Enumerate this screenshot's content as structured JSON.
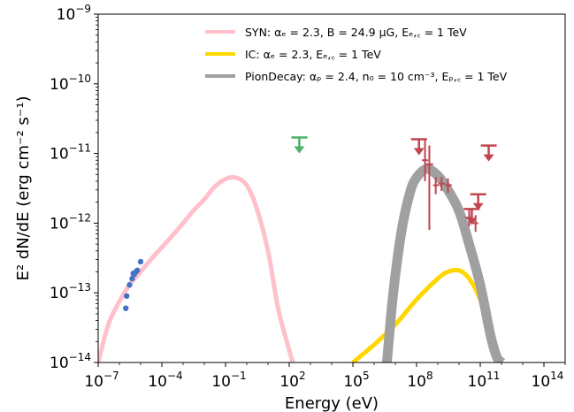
{
  "chart_data": {
    "type": "line",
    "xlabel": "Energy (eV)",
    "ylabel": "E² dN/dE (erg cm⁻² s⁻¹)",
    "x_scale": "log",
    "y_scale": "log",
    "xlim": [
      1e-07,
      1000000000000000.0
    ],
    "ylim": [
      1e-14,
      1e-09
    ],
    "x_ticks": [
      {
        "value": 1e-07,
        "base": "10",
        "exp": "−7"
      },
      {
        "value": 0.0001,
        "base": "10",
        "exp": "−4"
      },
      {
        "value": 0.1,
        "base": "10",
        "exp": "−1"
      },
      {
        "value": 100.0,
        "base": "10",
        "exp": "2"
      },
      {
        "value": 100000.0,
        "base": "10",
        "exp": "5"
      },
      {
        "value": 100000000.0,
        "base": "10",
        "exp": "8"
      },
      {
        "value": 100000000000.0,
        "base": "10",
        "exp": "11"
      },
      {
        "value": 100000000000000.0,
        "base": "10",
        "exp": "14"
      }
    ],
    "y_ticks": [
      {
        "value": 1e-14,
        "base": "10",
        "exp": "−14"
      },
      {
        "value": 1e-13,
        "base": "10",
        "exp": "−13"
      },
      {
        "value": 1e-12,
        "base": "10",
        "exp": "−12"
      },
      {
        "value": 1e-11,
        "base": "10",
        "exp": "−11"
      },
      {
        "value": 1e-10,
        "base": "10",
        "exp": "−10"
      },
      {
        "value": 1e-09,
        "base": "10",
        "exp": "−9"
      }
    ],
    "grid": false,
    "legend_position": "top-right",
    "legend": [
      {
        "series": "SYN",
        "text": "SYN: αₑ = 2.3, B = 24.9 μG, Eₑ,꜀ = 1 TeV"
      },
      {
        "series": "IC",
        "text": "IC: αₑ = 2.3, Eₑ,꜀ = 1 TeV"
      },
      {
        "series": "PionDecay",
        "text": "PionDecay: αₚ = 2.4, n₀ = 10 cm⁻³, Eₚ,꜀ = 1 TeV"
      }
    ],
    "series": [
      {
        "name": "SYN",
        "color": "#ffc0cb",
        "x": [
          1e-07,
          3e-07,
          1e-06,
          3e-06,
          1e-05,
          3e-05,
          0.0001,
          0.0003,
          0.001,
          0.003,
          0.01,
          0.03,
          0.1,
          0.3,
          1,
          3,
          10,
          30,
          100,
          150
        ],
        "y": [
          1e-14,
          3.5e-14,
          7.5e-14,
          1.3e-13,
          2e-13,
          3e-13,
          4.5e-13,
          6.5e-13,
          1e-12,
          1.5e-12,
          2.2e-12,
          3.3e-12,
          4.3e-12,
          4.5e-12,
          3.5e-12,
          1.6e-12,
          4e-13,
          6e-14,
          1.5e-14,
          1e-14
        ]
      },
      {
        "name": "IC",
        "color": "#ffd700",
        "x": [
          100000.0,
          1000000.0,
          10000000.0,
          100000000.0,
          1000000000.0,
          3000000000.0,
          10000000000.0,
          30000000000.0,
          100000000000.0,
          300000000000.0,
          1000000000000.0
        ],
        "y": [
          1e-14,
          1.8e-14,
          3.5e-14,
          8e-14,
          1.6e-13,
          2e-13,
          2.1e-13,
          1.6e-13,
          8e-14,
          2.5e-14,
          1e-14
        ]
      },
      {
        "name": "PionDecay",
        "color": "#a0a0a0",
        "x": [
          4000000.0,
          8000000.0,
          20000000.0,
          50000000.0,
          100000000.0,
          300000000.0,
          1000000000.0,
          3000000000.0,
          10000000000.0,
          30000000000.0,
          100000000000.0,
          300000000000.0,
          600000000000.0,
          1000000000000.0
        ],
        "y": [
          1e-14,
          1e-13,
          8e-13,
          2.8e-12,
          4.5e-12,
          6e-12,
          4.8e-12,
          3e-12,
          1.5e-12,
          5e-13,
          1.3e-13,
          2.5e-14,
          1.2e-14,
          1e-14
        ]
      }
    ],
    "data_points": {
      "name": "radio",
      "color": "#4472c4",
      "x": [
        2e-06,
        2.2e-06,
        3e-06,
        4e-06,
        4.5e-06,
        5e-06,
        6e-06,
        7e-06,
        1e-05
      ],
      "y": [
        6e-14,
        9e-14,
        1.3e-13,
        1.6e-13,
        1.9e-13,
        1.85e-13,
        2e-13,
        2.1e-13,
        2.8e-13
      ]
    },
    "upper_limits": [
      {
        "x": 300.0,
        "y": 1.7e-11,
        "color": "#4caf6a"
      },
      {
        "x": 130000000.0,
        "y": 1.6e-11,
        "color": "#c0454f"
      },
      {
        "x": 250000000000.0,
        "y": 1.3e-11,
        "color": "#c0454f"
      },
      {
        "x": 80000000000.0,
        "y": 2.6e-12,
        "color": "#c0454f"
      },
      {
        "x": 40000000000.0,
        "y": 1.6e-12,
        "color": "#c0454f"
      }
    ],
    "error_points": [
      {
        "x": 250000000.0,
        "y": 8e-12,
        "yerr": [
          4e-12,
          1.6e-11
        ],
        "xerr": [
          180000000.0,
          350000000.0
        ]
      },
      {
        "x": 400000000.0,
        "y": 7e-12,
        "yerr": [
          8e-13,
          1.3e-11
        ],
        "xerr": [
          280000000.0,
          600000000.0
        ]
      },
      {
        "x": 800000000.0,
        "y": 3.5e-12,
        "yerr": [
          2.6e-12,
          4.6e-12
        ],
        "xerr": [
          600000000.0,
          1100000000.0
        ]
      },
      {
        "x": 1500000000.0,
        "y": 3.7e-12,
        "yerr": [
          2.9e-12,
          4.6e-12
        ],
        "xerr": [
          1100000000.0,
          2200000000.0
        ]
      },
      {
        "x": 3000000000.0,
        "y": 3.5e-12,
        "yerr": [
          2.7e-12,
          4.4e-12
        ],
        "xerr": [
          2200000000.0,
          4500000000.0
        ]
      },
      {
        "x": 30000000000.0,
        "y": 1.2e-12,
        "yerr": [
          9e-13,
          1.6e-12
        ],
        "xerr": [
          20000000000.0,
          45000000000.0
        ]
      },
      {
        "x": 60000000000.0,
        "y": 1e-12,
        "yerr": [
          7.5e-13,
          1.3e-12
        ],
        "xerr": [
          45000000000.0,
          80000000000.0
        ]
      }
    ],
    "error_point_color": "#c0454f"
  }
}
